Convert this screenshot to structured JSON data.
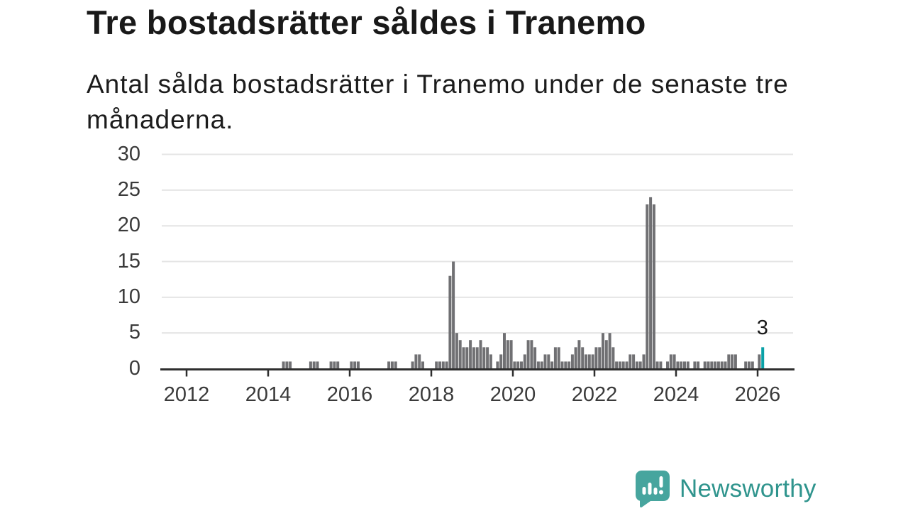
{
  "header": {
    "title": "Tre bostadsrätter såldes i Tranemo",
    "subtitle": "Antal sålda bostadsrätter i Tranemo under de senaste tre månaderna."
  },
  "chart_data": {
    "type": "bar",
    "title": "Tre bostadsrätter såldes i Tranemo",
    "subtitle": "Antal sålda bostadsrätter i Tranemo under de senaste tre månaderna.",
    "x_start": "2011-05",
    "x_end": "2026-02",
    "x_unit": "month",
    "ylim": [
      0,
      30
    ],
    "yticks": [
      0,
      5,
      10,
      15,
      20,
      25,
      30
    ],
    "xtick_years": [
      2012,
      2014,
      2016,
      2018,
      2020,
      2022,
      2024,
      2026
    ],
    "grid": "horizontal",
    "legend": "none",
    "values": [
      0,
      0,
      0,
      0,
      0,
      0,
      0,
      0,
      0,
      0,
      0,
      0,
      0,
      0,
      0,
      0,
      0,
      0,
      0,
      0,
      0,
      0,
      0,
      0,
      0,
      0,
      0,
      0,
      0,
      0,
      0,
      0,
      0,
      0,
      0,
      0,
      1,
      1,
      1,
      0,
      0,
      0,
      0,
      0,
      1,
      1,
      1,
      0,
      0,
      0,
      1,
      1,
      1,
      0,
      0,
      0,
      1,
      1,
      1,
      0,
      0,
      0,
      0,
      0,
      0,
      0,
      0,
      1,
      1,
      1,
      0,
      0,
      0,
      0,
      1,
      2,
      2,
      1,
      0,
      0,
      0,
      1,
      1,
      1,
      1,
      13,
      15,
      5,
      4,
      3,
      3,
      4,
      3,
      3,
      4,
      3,
      3,
      2,
      0,
      1,
      2,
      5,
      4,
      4,
      1,
      1,
      1,
      2,
      4,
      4,
      3,
      1,
      1,
      2,
      2,
      1,
      3,
      3,
      1,
      1,
      1,
      2,
      3,
      4,
      3,
      2,
      2,
      2,
      3,
      3,
      5,
      4,
      5,
      3,
      1,
      1,
      1,
      1,
      2,
      2,
      1,
      1,
      2,
      23,
      24,
      23,
      1,
      1,
      0,
      1,
      2,
      2,
      1,
      1,
      1,
      1,
      0,
      1,
      1,
      0,
      1,
      1,
      1,
      1,
      1,
      1,
      1,
      2,
      2,
      2,
      0,
      0,
      1,
      1,
      1,
      0,
      2,
      3
    ],
    "highlight": {
      "index": 177,
      "value": 3,
      "label": "3"
    },
    "colors": {
      "bar": "#707073",
      "highlight": "#0aa1a7",
      "grid": "#e4e4e4",
      "axis": "#2e2e2e",
      "tick_text": "#3a3a3a"
    }
  },
  "footer": {
    "brand": "Newsworthy",
    "brand_text_color": "#2f948d",
    "brand_icon_color": "#47a59e"
  }
}
